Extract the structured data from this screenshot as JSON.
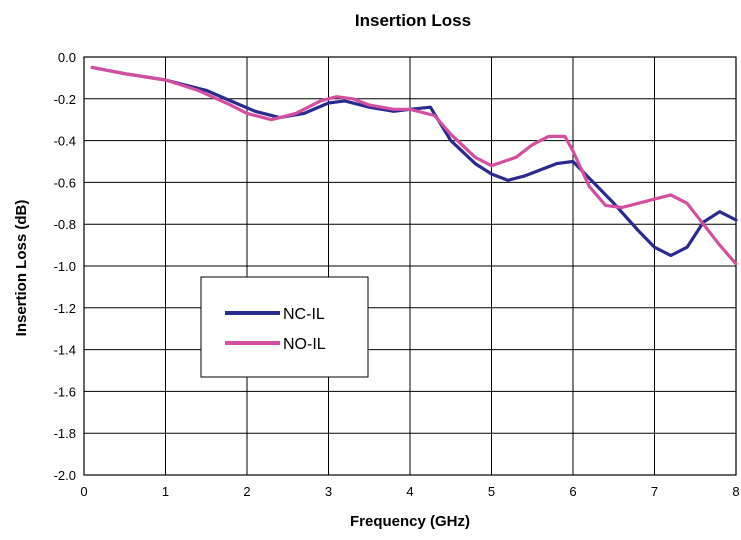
{
  "chart_data": {
    "type": "line",
    "title": "Insertion Loss",
    "xlabel": "Frequency (GHz)",
    "ylabel": "Insertion Loss (dB)",
    "xlim": [
      0,
      8
    ],
    "ylim": [
      -2.0,
      0.0
    ],
    "xticks": [
      "0",
      "1",
      "2",
      "3",
      "4",
      "5",
      "6",
      "7",
      "8"
    ],
    "yticks": [
      "0.0",
      "-0.2",
      "-0.4",
      "-0.6",
      "-0.8",
      "-1.0",
      "-1.2",
      "-1.4",
      "-1.6",
      "-1.8",
      "-2.0"
    ],
    "grid": true,
    "legend_position": "left-center",
    "series": [
      {
        "name": "NC-IL",
        "color": "#2b2b8f",
        "x": [
          0.1,
          0.5,
          1.0,
          1.5,
          1.8,
          2.1,
          2.4,
          2.7,
          3.0,
          3.2,
          3.5,
          3.8,
          4.0,
          4.25,
          4.5,
          4.8,
          5.0,
          5.2,
          5.4,
          5.6,
          5.8,
          6.0,
          6.2,
          6.5,
          6.8,
          7.0,
          7.2,
          7.4,
          7.6,
          7.8,
          8.0
        ],
        "y": [
          -0.05,
          -0.08,
          -0.11,
          -0.16,
          -0.21,
          -0.26,
          -0.29,
          -0.27,
          -0.22,
          -0.21,
          -0.24,
          -0.26,
          -0.25,
          -0.24,
          -0.4,
          -0.51,
          -0.56,
          -0.59,
          -0.57,
          -0.54,
          -0.51,
          -0.5,
          -0.58,
          -0.7,
          -0.83,
          -0.91,
          -0.95,
          -0.91,
          -0.79,
          -0.74,
          -0.78
        ]
      },
      {
        "name": "NO-IL",
        "color": "#d44fa0",
        "x": [
          0.1,
          0.5,
          1.0,
          1.4,
          1.8,
          2.0,
          2.3,
          2.6,
          2.9,
          3.1,
          3.3,
          3.5,
          3.8,
          4.0,
          4.3,
          4.5,
          4.8,
          5.0,
          5.3,
          5.5,
          5.7,
          5.9,
          6.0,
          6.2,
          6.4,
          6.6,
          6.8,
          7.0,
          7.2,
          7.4,
          7.6,
          7.8,
          8.0
        ],
        "y": [
          -0.05,
          -0.08,
          -0.11,
          -0.16,
          -0.23,
          -0.27,
          -0.3,
          -0.27,
          -0.21,
          -0.19,
          -0.2,
          -0.23,
          -0.25,
          -0.25,
          -0.28,
          -0.37,
          -0.48,
          -0.52,
          -0.48,
          -0.42,
          -0.38,
          -0.38,
          -0.45,
          -0.62,
          -0.71,
          -0.72,
          -0.7,
          -0.68,
          -0.66,
          -0.7,
          -0.8,
          -0.9,
          -0.99
        ]
      }
    ]
  }
}
